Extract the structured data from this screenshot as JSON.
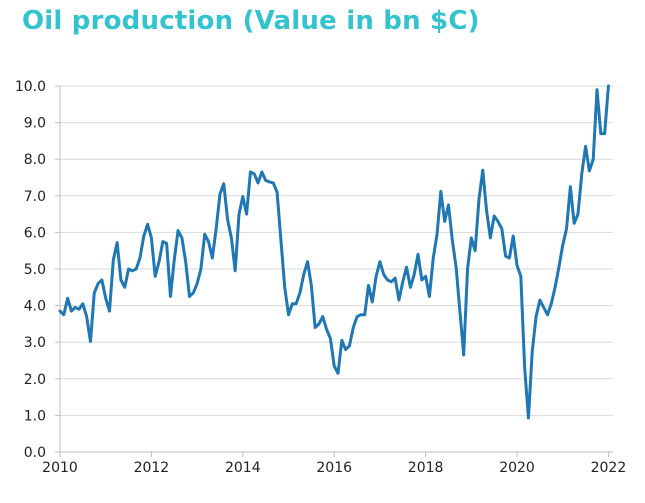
{
  "chart_data": {
    "type": "line",
    "title": "Oil production (Value in bn $C)",
    "xlabel": "",
    "ylabel": "",
    "xlim": [
      2010,
      2022.1
    ],
    "ylim": [
      0,
      10
    ],
    "yticks": [
      "0.0",
      "1.0",
      "2.0",
      "3.0",
      "4.0",
      "5.0",
      "6.0",
      "7.0",
      "8.0",
      "9.0",
      "10.0"
    ],
    "xticks": [
      "2010",
      "2012",
      "2014",
      "2016",
      "2018",
      "2020",
      "2022"
    ],
    "grid": true,
    "legend": "none",
    "line_color": "#1f77b4",
    "title_color": "#33c3cf",
    "series": [
      {
        "x": [
          2010.0,
          2010.083,
          2010.167,
          2010.25,
          2010.333,
          2010.417,
          2010.5,
          2010.583,
          2010.667,
          2010.75,
          2010.833,
          2010.917,
          2011.0,
          2011.083,
          2011.167,
          2011.25,
          2011.333,
          2011.417,
          2011.5,
          2011.583,
          2011.667,
          2011.75,
          2011.833,
          2011.917,
          2012.0,
          2012.083,
          2012.167,
          2012.25,
          2012.333,
          2012.417,
          2012.5,
          2012.583,
          2012.667,
          2012.75,
          2012.833,
          2012.917,
          2013.0,
          2013.083,
          2013.167,
          2013.25,
          2013.333,
          2013.417,
          2013.5,
          2013.583,
          2013.667,
          2013.75,
          2013.833,
          2013.917,
          2014.0,
          2014.083,
          2014.167,
          2014.25,
          2014.333,
          2014.417,
          2014.5,
          2014.583,
          2014.667,
          2014.75,
          2014.833,
          2014.917,
          2015.0,
          2015.083,
          2015.167,
          2015.25,
          2015.333,
          2015.417,
          2015.5,
          2015.583,
          2015.667,
          2015.75,
          2015.833,
          2015.917,
          2016.0,
          2016.083,
          2016.167,
          2016.25,
          2016.333,
          2016.417,
          2016.5,
          2016.583,
          2016.667,
          2016.75,
          2016.833,
          2016.917,
          2017.0,
          2017.083,
          2017.167,
          2017.25,
          2017.333,
          2017.417,
          2017.5,
          2017.583,
          2017.667,
          2017.75,
          2017.833,
          2017.917,
          2018.0,
          2018.083,
          2018.167,
          2018.25,
          2018.333,
          2018.417,
          2018.5,
          2018.583,
          2018.667,
          2018.75,
          2018.833,
          2018.917,
          2019.0,
          2019.083,
          2019.167,
          2019.25,
          2019.333,
          2019.417,
          2019.5,
          2019.583,
          2019.667,
          2019.75,
          2019.833,
          2019.917,
          2020.0,
          2020.083,
          2020.167,
          2020.25,
          2020.333,
          2020.417,
          2020.5,
          2020.583,
          2020.667,
          2020.75,
          2020.833,
          2020.917,
          2021.0,
          2021.083,
          2021.167,
          2021.25,
          2021.333,
          2021.417,
          2021.5,
          2021.583,
          2021.667,
          2021.75,
          2021.833,
          2021.917,
          2022.0
        ],
        "values": [
          3.85,
          3.75,
          4.2,
          3.85,
          3.95,
          3.9,
          4.05,
          3.7,
          3.02,
          4.35,
          4.6,
          4.7,
          4.2,
          3.85,
          5.25,
          5.72,
          4.7,
          4.5,
          5.0,
          4.95,
          5.0,
          5.3,
          5.9,
          6.22,
          5.85,
          4.8,
          5.2,
          5.75,
          5.7,
          4.25,
          5.25,
          6.05,
          5.85,
          5.2,
          4.25,
          4.35,
          4.6,
          5.0,
          5.95,
          5.75,
          5.3,
          6.1,
          7.05,
          7.33,
          6.35,
          5.85,
          4.95,
          6.5,
          6.98,
          6.5,
          7.65,
          7.6,
          7.35,
          7.65,
          7.42,
          7.38,
          7.35,
          7.1,
          5.8,
          4.5,
          3.75,
          4.05,
          4.05,
          4.35,
          4.85,
          5.2,
          4.55,
          3.4,
          3.5,
          3.7,
          3.35,
          3.1,
          2.35,
          2.15,
          3.05,
          2.8,
          2.9,
          3.4,
          3.7,
          3.75,
          3.75,
          4.55,
          4.1,
          4.8,
          5.2,
          4.85,
          4.7,
          4.65,
          4.75,
          4.15,
          4.65,
          5.05,
          4.5,
          4.85,
          5.4,
          4.7,
          4.8,
          4.25,
          5.3,
          5.95,
          7.12,
          6.3,
          6.75,
          5.8,
          5.05,
          3.85,
          2.65,
          5.0,
          5.85,
          5.5,
          6.9,
          7.7,
          6.6,
          5.85,
          6.45,
          6.3,
          6.1,
          5.35,
          5.3,
          5.9,
          5.1,
          4.8,
          2.3,
          0.93,
          2.75,
          3.7,
          4.15,
          3.95,
          3.75,
          4.05,
          4.5,
          5.05,
          5.65,
          6.1,
          7.25,
          6.25,
          6.5,
          7.6,
          8.35,
          7.68,
          8.0,
          9.9,
          8.7,
          8.7,
          10.0
        ]
      }
    ]
  }
}
